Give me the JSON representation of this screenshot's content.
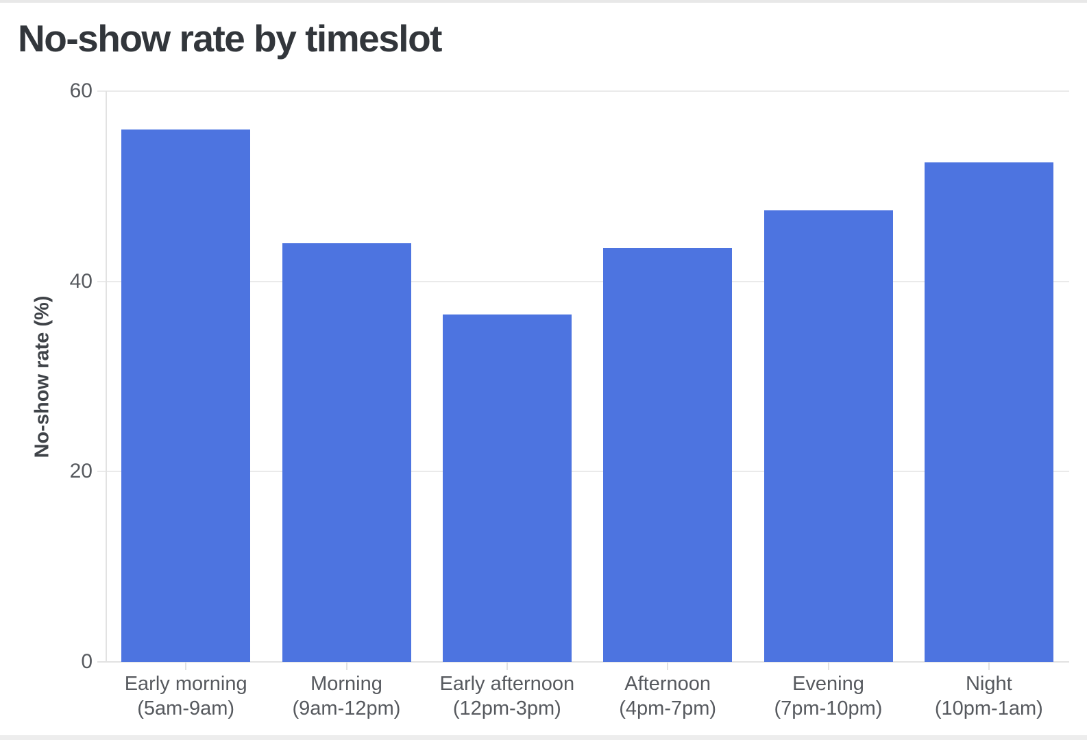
{
  "chart_data": {
    "type": "bar",
    "title": "No-show rate by timeslot",
    "ylabel": "No-show rate (%)",
    "xlabel": "",
    "ylim": [
      0,
      60
    ],
    "yticks": [
      0,
      20,
      40,
      60
    ],
    "grid": true,
    "legend": false,
    "bar_color": "#4D74E0",
    "categories": [
      {
        "label": "Early morning",
        "range": "(5am-9am)"
      },
      {
        "label": "Morning",
        "range": "(9am-12pm)"
      },
      {
        "label": "Early afternoon",
        "range": "(12pm-3pm)"
      },
      {
        "label": "Afternoon",
        "range": "(4pm-7pm)"
      },
      {
        "label": "Evening",
        "range": "(7pm-10pm)"
      },
      {
        "label": "Night",
        "range": "(10pm-1am)"
      }
    ],
    "values": [
      56,
      44,
      36.5,
      43.5,
      47.5,
      52.5
    ]
  },
  "colors": {
    "bar": "#4D74E0",
    "grid": "#EAEAEA",
    "axis": "#E2E2E2",
    "title_text": "#32363B",
    "tick_text": "#56595E",
    "axis_label_text": "#3F4348",
    "top_border": "#E8E8E8",
    "bottom_border": "#EDEDED",
    "background": "#FFFFFF"
  }
}
